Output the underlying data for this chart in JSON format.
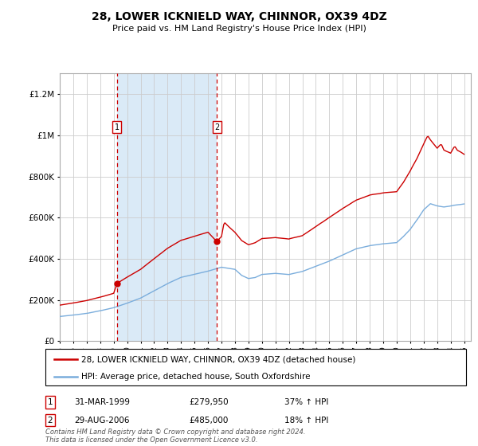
{
  "title": "28, LOWER ICKNIELD WAY, CHINNOR, OX39 4DZ",
  "subtitle": "Price paid vs. HM Land Registry's House Price Index (HPI)",
  "legend_line1": "28, LOWER ICKNIELD WAY, CHINNOR, OX39 4DZ (detached house)",
  "legend_line2": "HPI: Average price, detached house, South Oxfordshire",
  "annotation1_date": "31-MAR-1999",
  "annotation1_price": "£279,950",
  "annotation1_hpi": "37% ↑ HPI",
  "annotation1_year": 1999.25,
  "annotation1_value": 279950,
  "annotation2_date": "29-AUG-2006",
  "annotation2_price": "£485,000",
  "annotation2_hpi": "18% ↑ HPI",
  "annotation2_year": 2006.65,
  "annotation2_value": 485000,
  "copyright": "Contains HM Land Registry data © Crown copyright and database right 2024.\nThis data is licensed under the Open Government Licence v3.0.",
  "ylim": [
    0,
    1300000
  ],
  "xlim_start": 1995.0,
  "xlim_end": 2025.5,
  "red_color": "#cc0000",
  "blue_color": "#7aaddc",
  "shade_color": "#daeaf7",
  "background_color": "#ffffff",
  "grid_color": "#cccccc"
}
